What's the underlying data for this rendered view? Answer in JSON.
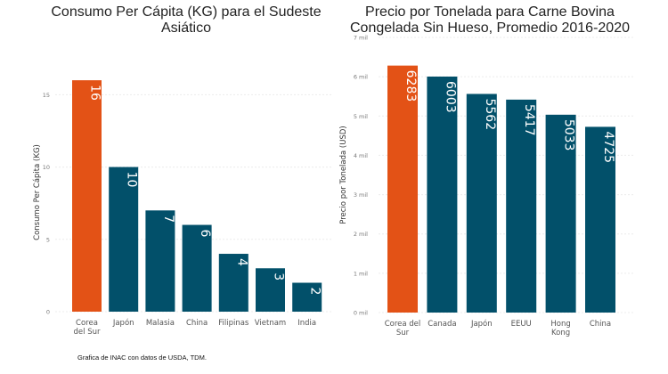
{
  "colors": {
    "highlight": "#E35216",
    "default": "#02506A"
  },
  "chart_data": [
    {
      "type": "bar",
      "title_lines": [
        "Consumo Per Cápita (KG) para el Sudeste",
        "Asiático"
      ],
      "ylabel": "Consumo Per Cápita (KG)",
      "categories": [
        [
          "Corea",
          "del Sur"
        ],
        [
          "Japón"
        ],
        [
          "Malasia"
        ],
        [
          "China"
        ],
        [
          "Filipinas"
        ],
        [
          "Vietnam"
        ],
        [
          "India"
        ]
      ],
      "values": [
        16,
        10,
        7,
        6,
        4,
        3,
        2
      ],
      "data_labels": [
        "16",
        "10",
        "7",
        "6",
        "4",
        "3",
        "2"
      ],
      "highlight_index": 0,
      "ylim": [
        0,
        16.5
      ],
      "yticks": [
        0,
        5,
        10,
        15
      ],
      "ytick_labels": [
        "0",
        "5",
        "10",
        "15"
      ],
      "grid": true
    },
    {
      "type": "bar",
      "title_lines": [
        "Precio por Tonelada para Carne Bovina",
        "Congelada Sin Hueso, Promedio 2016-2020"
      ],
      "ylabel": "Precio por Tonelada (USD)",
      "categories": [
        [
          "Corea del",
          "Sur"
        ],
        [
          "Canada"
        ],
        [
          "Japón"
        ],
        [
          "EEUU"
        ],
        [
          "Hong",
          "Kong"
        ],
        [
          "China"
        ]
      ],
      "values": [
        6283,
        6003,
        5562,
        5417,
        5033,
        4725
      ],
      "data_labels": [
        "6283",
        "6003",
        "5562",
        "5417",
        "5033",
        "4725"
      ],
      "highlight_index": 0,
      "ylim": [
        0,
        7000
      ],
      "yticks": [
        0,
        1000,
        2000,
        3000,
        4000,
        5000,
        6000,
        7000
      ],
      "ytick_labels": [
        "0 mil",
        "1 mil",
        "2 mil",
        "3 mil",
        "4 mil",
        "5 mil",
        "6 mil",
        "7 mil"
      ],
      "grid": true
    }
  ],
  "caption": "Grafica de INAC con datos de USDA, TDM."
}
